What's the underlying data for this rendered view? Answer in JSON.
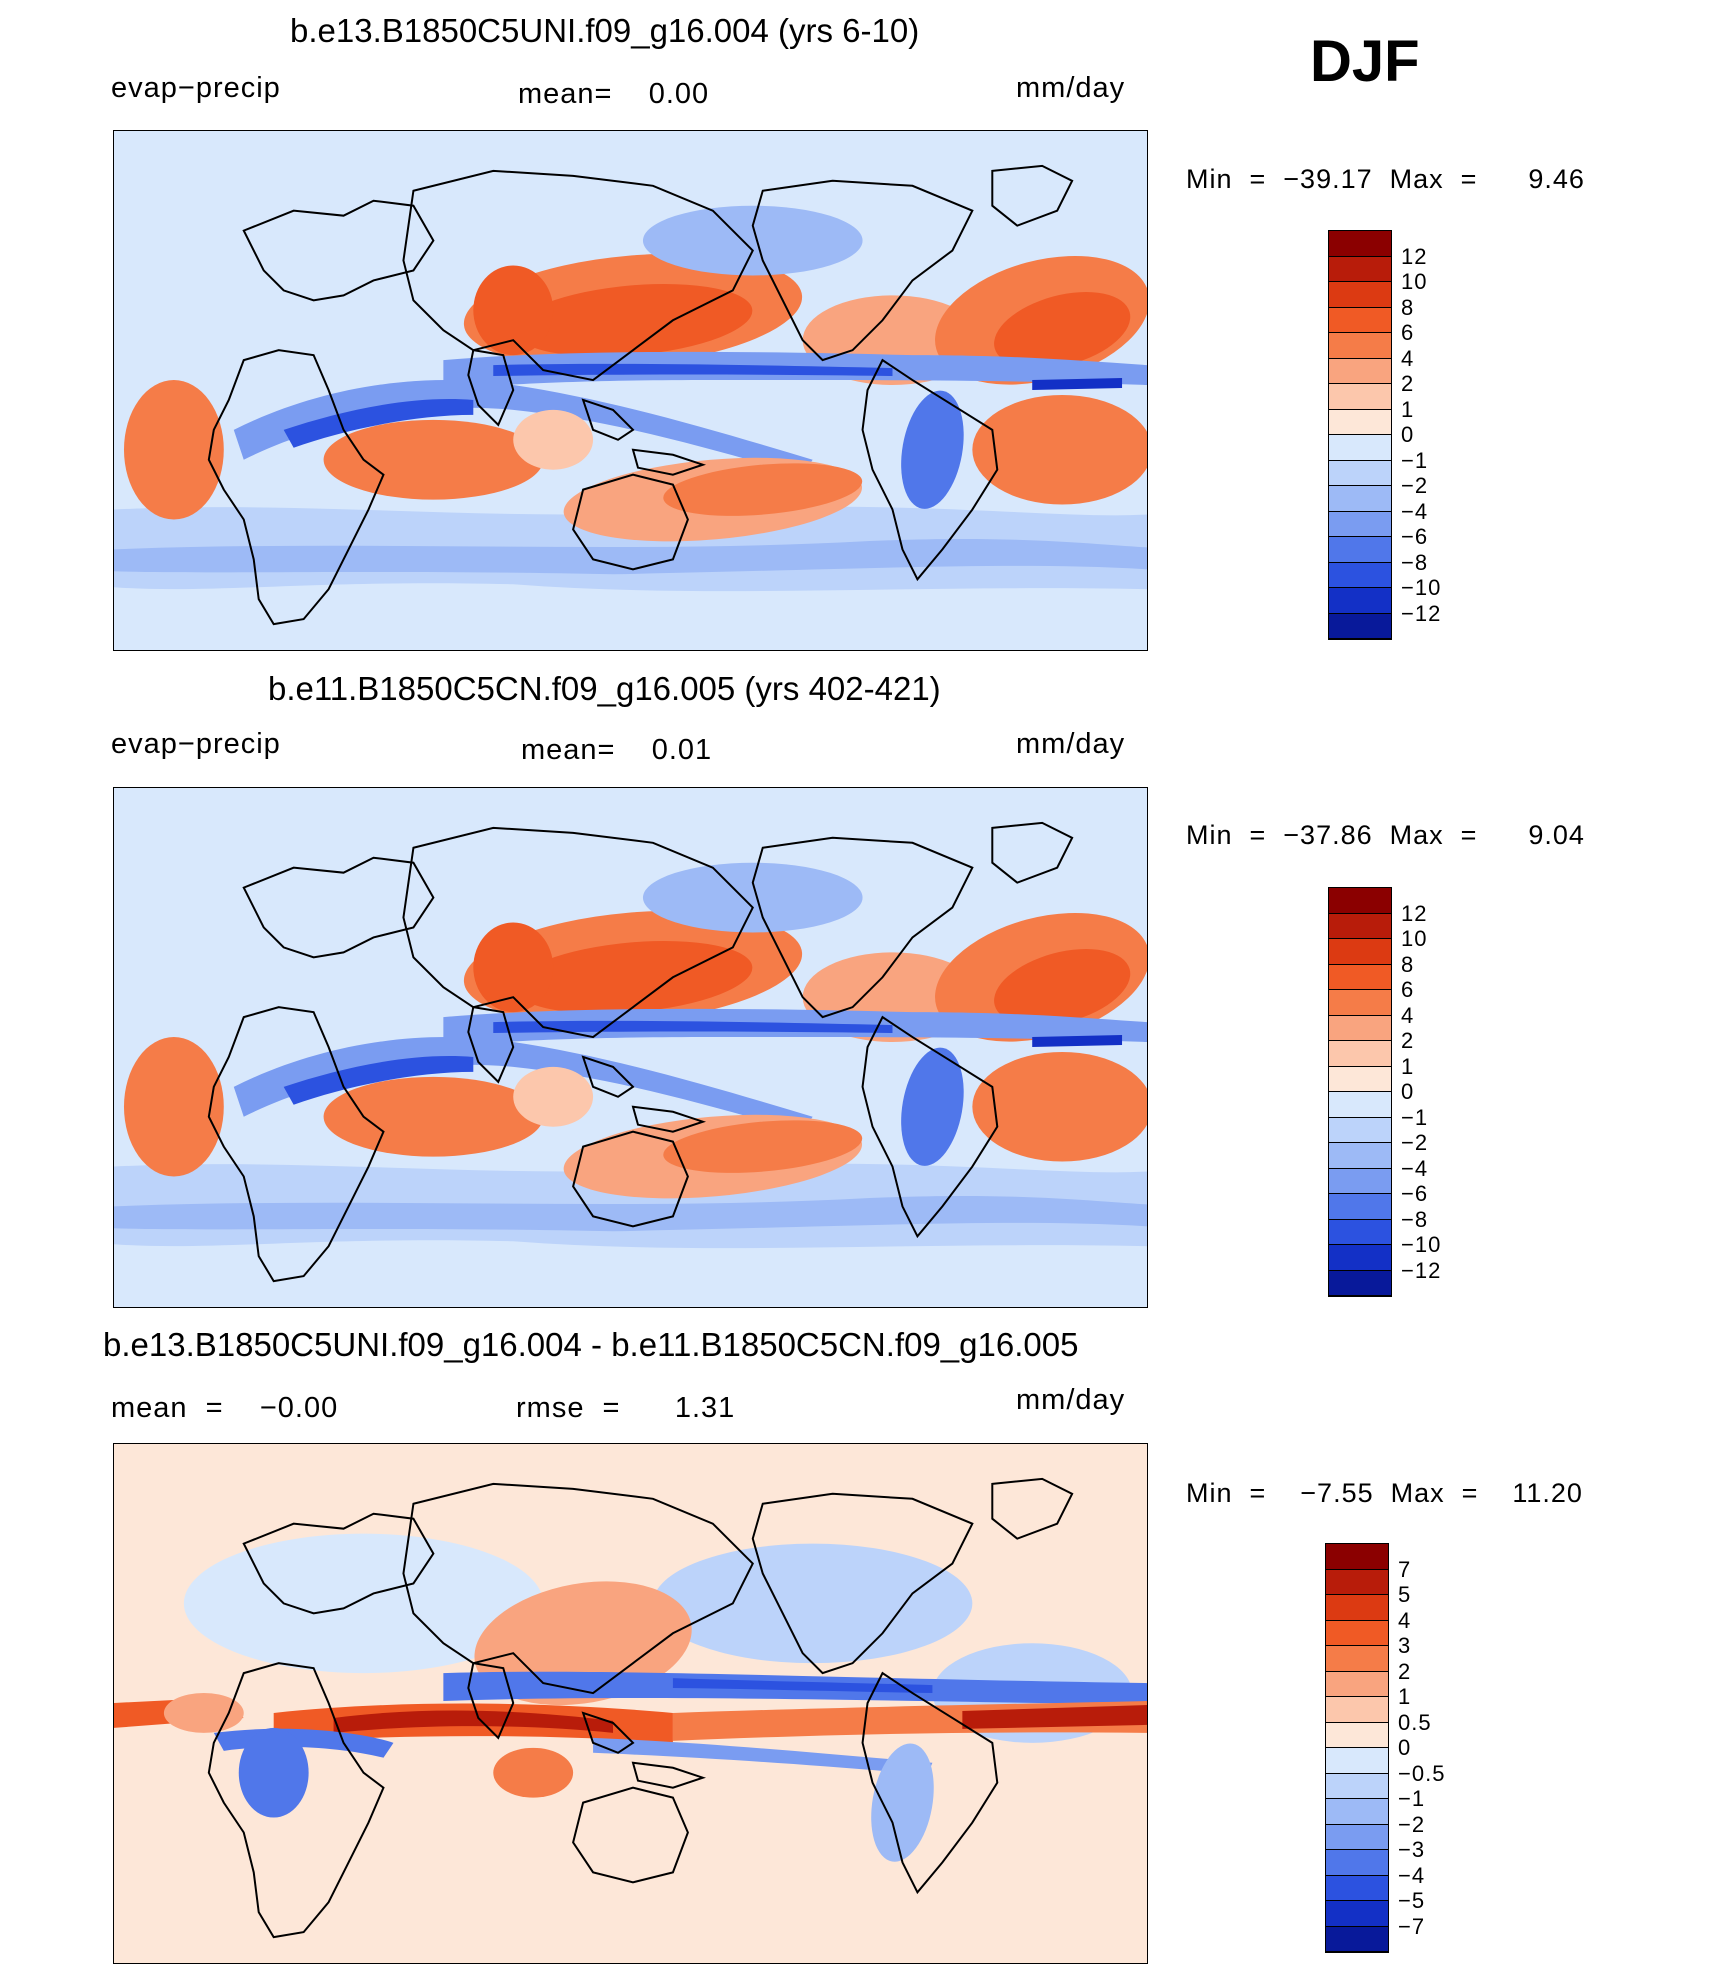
{
  "season_label": "DJF",
  "chart_data": [
    {
      "type": "heatmap",
      "title": "b.e13.B1850C5UNI.f09_g16.004 (yrs 6-10)",
      "left_label": "evap−precip",
      "center_label": "mean=    0.00",
      "units": "mm/day",
      "min_max_text": "Min  =  −39.17  Max  =      9.46",
      "min": -39.17,
      "max": 9.46,
      "mean": 0.0,
      "levels": [
        "12",
        "10",
        "8",
        "6",
        "4",
        "2",
        "1",
        "0",
        "−1",
        "−2",
        "−4",
        "−6",
        "−8",
        "−10",
        "−12"
      ],
      "colors": [
        "#8b0000",
        "#b81c0a",
        "#dc3a12",
        "#f05a25",
        "#f57c48",
        "#f9a47f",
        "#fcc7ac",
        "#fde7d8",
        "#d8e8fc",
        "#bcd3fa",
        "#9dbaf6",
        "#7a9cf1",
        "#5077ea",
        "#2c52e0",
        "#1330c6",
        "#08199a"
      ]
    },
    {
      "type": "heatmap",
      "title": "b.e11.B1850C5CN.f09_g16.005 (yrs 402-421)",
      "left_label": "evap−precip",
      "center_label": "mean=    0.01",
      "units": "mm/day",
      "min_max_text": "Min  =  −37.86  Max  =      9.04",
      "min": -37.86,
      "max": 9.04,
      "mean": 0.01,
      "levels": [
        "12",
        "10",
        "8",
        "6",
        "4",
        "2",
        "1",
        "0",
        "−1",
        "−2",
        "−4",
        "−6",
        "−8",
        "−10",
        "−12"
      ],
      "colors": [
        "#8b0000",
        "#b81c0a",
        "#dc3a12",
        "#f05a25",
        "#f57c48",
        "#f9a47f",
        "#fcc7ac",
        "#fde7d8",
        "#d8e8fc",
        "#bcd3fa",
        "#9dbaf6",
        "#7a9cf1",
        "#5077ea",
        "#2c52e0",
        "#1330c6",
        "#08199a"
      ]
    },
    {
      "type": "heatmap",
      "title": "b.e13.B1850C5UNI.f09_g16.004 - b.e11.B1850C5CN.f09_g16.005",
      "left_label": "mean  =    −0.00",
      "center_label": "rmse  =      1.31",
      "units": "mm/day",
      "min_max_text": "Min  =    −7.55  Max  =    11.20",
      "min": -7.55,
      "max": 11.2,
      "mean": -0.0,
      "rmse": 1.31,
      "levels": [
        "7",
        "5",
        "4",
        "3",
        "2",
        "1",
        "0.5",
        "0",
        "−0.5",
        "−1",
        "−2",
        "−3",
        "−4",
        "−5",
        "−7"
      ],
      "colors": [
        "#8b0000",
        "#b81c0a",
        "#dc3a12",
        "#f05a25",
        "#f57c48",
        "#f9a47f",
        "#fcc7ac",
        "#fde7d8",
        "#d8e8fc",
        "#bcd3fa",
        "#9dbaf6",
        "#7a9cf1",
        "#5077ea",
        "#2c52e0",
        "#1330c6",
        "#08199a"
      ]
    }
  ]
}
